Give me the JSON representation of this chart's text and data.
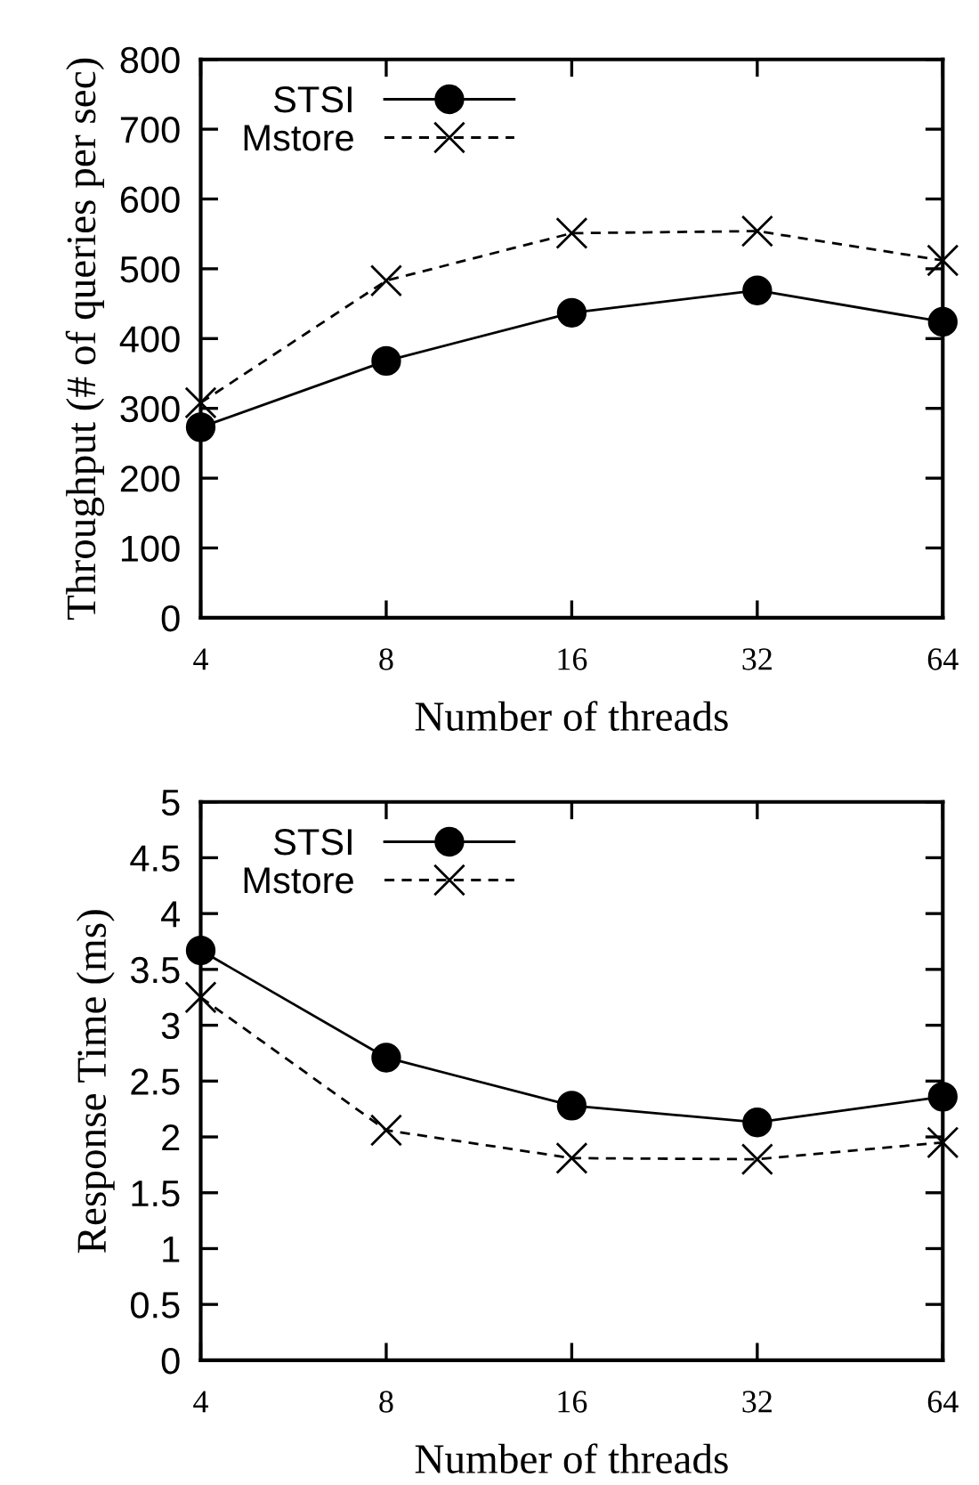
{
  "chart_data": [
    {
      "type": "line",
      "xlabel": "Number of threads",
      "ylabel": "Throughput (# of queries per sec)",
      "categories": [
        "4",
        "8",
        "16",
        "32",
        "64"
      ],
      "ylim": [
        0,
        800
      ],
      "yticks": [
        0,
        100,
        200,
        300,
        400,
        500,
        600,
        700,
        800
      ],
      "grid": false,
      "legend": "top left",
      "series": [
        {
          "name": "STSI",
          "color": "#000000",
          "marker": "circle",
          "line_style": "solid",
          "values": [
            273,
            368,
            437,
            469,
            424
          ]
        },
        {
          "name": "Mstore",
          "color": "#000000",
          "marker": "cross",
          "line_style": "dashed",
          "values": [
            308,
            483,
            551,
            554,
            512
          ]
        }
      ]
    },
    {
      "type": "line",
      "xlabel": "Number of threads",
      "ylabel": "Response Time (ms)",
      "categories": [
        "4",
        "8",
        "16",
        "32",
        "64"
      ],
      "ylim": [
        0,
        5
      ],
      "yticks": [
        0,
        0.5,
        1,
        1.5,
        2,
        2.5,
        3,
        3.5,
        4,
        4.5,
        5
      ],
      "grid": false,
      "legend": "top left",
      "series": [
        {
          "name": "STSI",
          "color": "#000000",
          "marker": "circle",
          "line_style": "solid",
          "values": [
            3.67,
            2.71,
            2.28,
            2.13,
            2.36
          ]
        },
        {
          "name": "Mstore",
          "color": "#000000",
          "marker": "cross",
          "line_style": "dashed",
          "values": [
            3.25,
            2.06,
            1.81,
            1.8,
            1.95
          ]
        }
      ]
    }
  ]
}
